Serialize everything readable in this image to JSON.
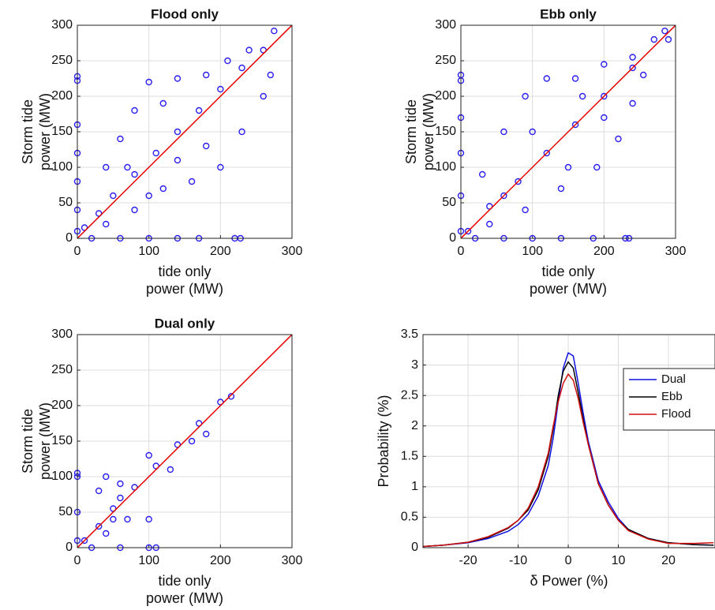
{
  "chart_data": [
    {
      "type": "scatter",
      "title": "Flood only",
      "xlabel": [
        "tide only",
        "power (MW)"
      ],
      "ylabel": [
        "Storm tide",
        "power (MW)"
      ],
      "xlim": [
        0,
        300
      ],
      "ylim": [
        0,
        300
      ],
      "xticks": [
        0,
        100,
        200,
        300
      ],
      "yticks": [
        0,
        50,
        100,
        150,
        200,
        250,
        300
      ],
      "grid": true,
      "series": [
        {
          "color": "#2b1ff0",
          "x": [
            0,
            0,
            0,
            0,
            0,
            0,
            0,
            20,
            60,
            100,
            140,
            170,
            220,
            228,
            10,
            30,
            50,
            80,
            110,
            140,
            170,
            200,
            230,
            260,
            275,
            40,
            60,
            80,
            100,
            140,
            180,
            210,
            240,
            70,
            120,
            40,
            80,
            120,
            160,
            200,
            230,
            260,
            270,
            180,
            140,
            100
          ],
          "y": [
            10,
            40,
            80,
            120,
            160,
            222,
            228,
            0,
            0,
            0,
            0,
            0,
            0,
            0,
            15,
            35,
            60,
            90,
            120,
            150,
            180,
            210,
            240,
            265,
            292,
            100,
            140,
            180,
            220,
            225,
            230,
            250,
            265,
            100,
            190,
            20,
            40,
            70,
            80,
            100,
            150,
            200,
            230,
            130,
            110,
            60
          ]
        }
      ],
      "lines": [
        {
          "color": "#000000",
          "x": [
            0,
            300
          ],
          "y": [
            0,
            300
          ]
        },
        {
          "color": "#ff0000",
          "x": [
            0,
            300
          ],
          "y": [
            0,
            300
          ]
        }
      ]
    },
    {
      "type": "scatter",
      "title": "Ebb only",
      "xlabel": [
        "tide only",
        "power (MW)"
      ],
      "ylabel": [
        "Storm tide",
        "power (MW)"
      ],
      "xlim": [
        0,
        300
      ],
      "ylim": [
        0,
        300
      ],
      "xticks": [
        0,
        100,
        200,
        300
      ],
      "yticks": [
        0,
        50,
        100,
        150,
        200,
        250,
        300
      ],
      "grid": true,
      "series": [
        {
          "color": "#2b1ff0",
          "x": [
            0,
            0,
            0,
            0,
            0,
            0,
            20,
            60,
            100,
            140,
            185,
            230,
            235,
            10,
            40,
            80,
            120,
            160,
            200,
            240,
            270,
            285,
            290,
            30,
            60,
            90,
            120,
            160,
            200,
            240,
            40,
            90,
            140,
            190,
            220,
            240,
            255,
            100,
            150,
            200,
            170,
            60
          ],
          "y": [
            10,
            60,
            120,
            170,
            222,
            230,
            0,
            0,
            0,
            0,
            0,
            0,
            0,
            10,
            45,
            80,
            120,
            160,
            200,
            240,
            280,
            292,
            280,
            90,
            150,
            200,
            225,
            225,
            245,
            255,
            20,
            40,
            70,
            100,
            140,
            190,
            230,
            150,
            100,
            170,
            200,
            60
          ]
        }
      ],
      "lines": [
        {
          "color": "#000000",
          "x": [
            0,
            300
          ],
          "y": [
            0,
            300
          ]
        },
        {
          "color": "#ff0000",
          "x": [
            0,
            300
          ],
          "y": [
            0,
            300
          ]
        }
      ]
    },
    {
      "type": "scatter",
      "title": "Dual only",
      "xlabel": [
        "tide only",
        "power (MW)"
      ],
      "ylabel": [
        "Storm tide",
        "power (MW)"
      ],
      "xlim": [
        0,
        300
      ],
      "ylim": [
        0,
        300
      ],
      "xticks": [
        0,
        100,
        200,
        300
      ],
      "yticks": [
        0,
        50,
        100,
        150,
        200,
        250,
        300
      ],
      "grid": true,
      "series": [
        {
          "color": "#2b1ff0",
          "x": [
            0,
            0,
            0,
            0,
            20,
            60,
            100,
            110,
            10,
            30,
            50,
            80,
            110,
            140,
            170,
            200,
            215,
            40,
            30,
            60,
            50,
            70,
            100,
            40,
            100,
            130,
            160,
            180,
            60
          ],
          "y": [
            10,
            50,
            100,
            105,
            0,
            0,
            0,
            0,
            10,
            30,
            55,
            85,
            115,
            145,
            175,
            205,
            213,
            100,
            80,
            90,
            40,
            40,
            40,
            20,
            130,
            110,
            150,
            160,
            70
          ]
        }
      ],
      "lines": [
        {
          "color": "#000000",
          "x": [
            0,
            300
          ],
          "y": [
            0,
            300
          ]
        },
        {
          "color": "#ff0000",
          "x": [
            0,
            300
          ],
          "y": [
            0,
            300
          ]
        }
      ]
    },
    {
      "type": "line",
      "xlabel": [
        "δ Power (%)"
      ],
      "ylabel": [
        "Probability (%)"
      ],
      "xlim": [
        -29,
        29.3
      ],
      "ylim": [
        0,
        3.5
      ],
      "xticks": [
        -20,
        -10,
        0,
        10,
        20
      ],
      "yticks": [
        0,
        0.5,
        1,
        1.5,
        2,
        2.5,
        3,
        3.5
      ],
      "grid": true,
      "legend": "northeast",
      "x": [
        -29,
        -25,
        -20,
        -16,
        -12,
        -10,
        -8,
        -6,
        -4,
        -3,
        -2,
        -1,
        0,
        1,
        2,
        3,
        4,
        6,
        8,
        10,
        12,
        16,
        20,
        25,
        29
      ],
      "series": [
        {
          "name": "Dual",
          "color": "#1010e0",
          "values": [
            0.02,
            0.04,
            0.08,
            0.15,
            0.27,
            0.38,
            0.55,
            0.85,
            1.35,
            1.8,
            2.4,
            2.95,
            3.2,
            3.15,
            2.7,
            2.2,
            1.75,
            1.1,
            0.75,
            0.48,
            0.3,
            0.15,
            0.08,
            0.05,
            0.04
          ]
        },
        {
          "name": "Ebb",
          "color": "#000000",
          "values": [
            0.02,
            0.04,
            0.09,
            0.17,
            0.32,
            0.45,
            0.62,
            0.95,
            1.5,
            1.95,
            2.5,
            2.9,
            3.05,
            2.95,
            2.55,
            2.1,
            1.7,
            1.05,
            0.7,
            0.45,
            0.3,
            0.15,
            0.08,
            0.05,
            0.04
          ]
        },
        {
          "name": "Flood",
          "color": "#d01010",
          "values": [
            0.02,
            0.04,
            0.09,
            0.18,
            0.33,
            0.45,
            0.65,
            1.0,
            1.55,
            2.0,
            2.4,
            2.7,
            2.85,
            2.75,
            2.45,
            2.05,
            1.7,
            1.05,
            0.7,
            0.45,
            0.28,
            0.14,
            0.07,
            0.07,
            0.08
          ]
        }
      ]
    }
  ]
}
